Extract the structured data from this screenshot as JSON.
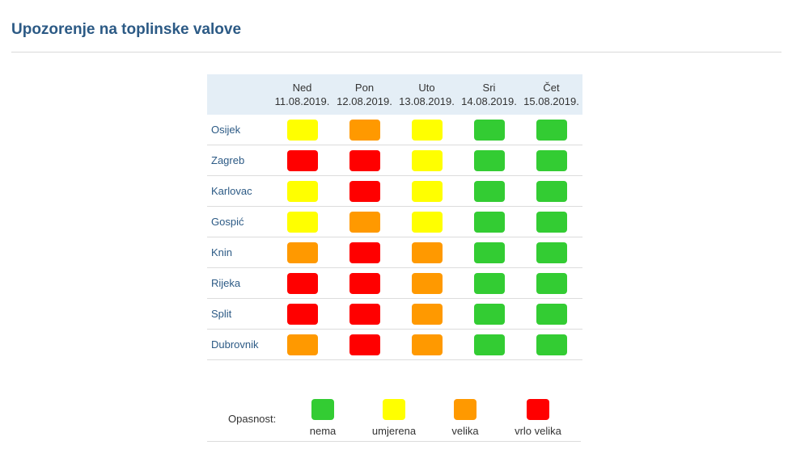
{
  "page": {
    "title": "Upozorenje na toplinske valove"
  },
  "levels": {
    "nema": "#33cc33",
    "umjerena": "#ffff00",
    "velika": "#ff9900",
    "vrlo_velika": "#ff0000"
  },
  "table": {
    "days": [
      {
        "name": "Ned",
        "date": "11.08.2019."
      },
      {
        "name": "Pon",
        "date": "12.08.2019."
      },
      {
        "name": "Uto",
        "date": "13.08.2019."
      },
      {
        "name": "Sri",
        "date": "14.08.2019."
      },
      {
        "name": "Čet",
        "date": "15.08.2019."
      }
    ],
    "rows": [
      {
        "city": "Osijek",
        "levels": [
          "umjerena",
          "velika",
          "umjerena",
          "nema",
          "nema"
        ]
      },
      {
        "city": "Zagreb",
        "levels": [
          "vrlo_velika",
          "vrlo_velika",
          "umjerena",
          "nema",
          "nema"
        ]
      },
      {
        "city": "Karlovac",
        "levels": [
          "umjerena",
          "vrlo_velika",
          "umjerena",
          "nema",
          "nema"
        ]
      },
      {
        "city": "Gospić",
        "levels": [
          "umjerena",
          "velika",
          "umjerena",
          "nema",
          "nema"
        ]
      },
      {
        "city": "Knin",
        "levels": [
          "velika",
          "vrlo_velika",
          "velika",
          "nema",
          "nema"
        ]
      },
      {
        "city": "Rijeka",
        "levels": [
          "vrlo_velika",
          "vrlo_velika",
          "velika",
          "nema",
          "nema"
        ]
      },
      {
        "city": "Split",
        "levels": [
          "vrlo_velika",
          "vrlo_velika",
          "velika",
          "nema",
          "nema"
        ]
      },
      {
        "city": "Dubrovnik",
        "levels": [
          "velika",
          "vrlo_velika",
          "velika",
          "nema",
          "nema"
        ]
      }
    ]
  },
  "legend": {
    "title": "Opasnost:",
    "items": [
      {
        "key": "nema",
        "label": "nema"
      },
      {
        "key": "umjerena",
        "label": "umjerena"
      },
      {
        "key": "velika",
        "label": "velika"
      },
      {
        "key": "vrlo_velika",
        "label": "vrlo velika"
      }
    ]
  }
}
